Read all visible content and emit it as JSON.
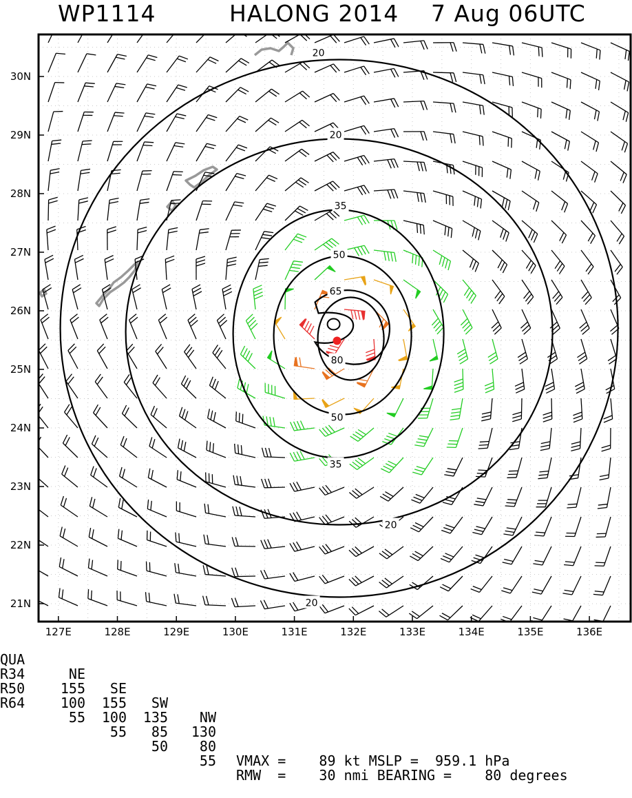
{
  "title": {
    "storm_id": "WP1114",
    "storm_name_year": "HALONG 2014",
    "date_time": "7 Aug 06UTC"
  },
  "map": {
    "lat_ticks": [
      "30N",
      "29N",
      "28N",
      "27N",
      "26N",
      "25N",
      "24N",
      "23N",
      "22N",
      "21N"
    ],
    "lon_ticks": [
      "127E",
      "128E",
      "129E",
      "130E",
      "131E",
      "132E",
      "133E",
      "134E",
      "135E",
      "136E"
    ],
    "center": {
      "lon": 131.7,
      "lat": 25.7
    },
    "contour_labels": [
      "20",
      "20",
      "35",
      "50",
      "65",
      "80",
      "50",
      "35",
      "20",
      "20"
    ],
    "colors": {
      "barb_lt34": "#000000",
      "barb_34_50": "#22cc22",
      "barb_50_64": "#e8a317",
      "barb_64_80": "#e87320",
      "barb_gt80": "#e83030",
      "center_dot": "#ee2222",
      "coast": "#999999"
    }
  },
  "table": {
    "header": {
      "qua": "QUA",
      "ne": "NE",
      "se": "SE",
      "sw": "SW",
      "nw": "NW"
    },
    "rows": [
      {
        "label": "R34",
        "ne": "155",
        "se": "155",
        "sw": "135",
        "nw": "130"
      },
      {
        "label": "R50",
        "ne": "100",
        "se": "100",
        "sw": "85",
        "nw": "80"
      },
      {
        "label": "R64",
        "ne": "55",
        "se": "55",
        "sw": "50",
        "nw": "55"
      }
    ]
  },
  "stats": {
    "vmax_text": "VMAX =    89 kt MSLP =  959.1 hPa",
    "rmw_text": "RMW  =    30 nmi BEARING =    80 degrees"
  }
}
